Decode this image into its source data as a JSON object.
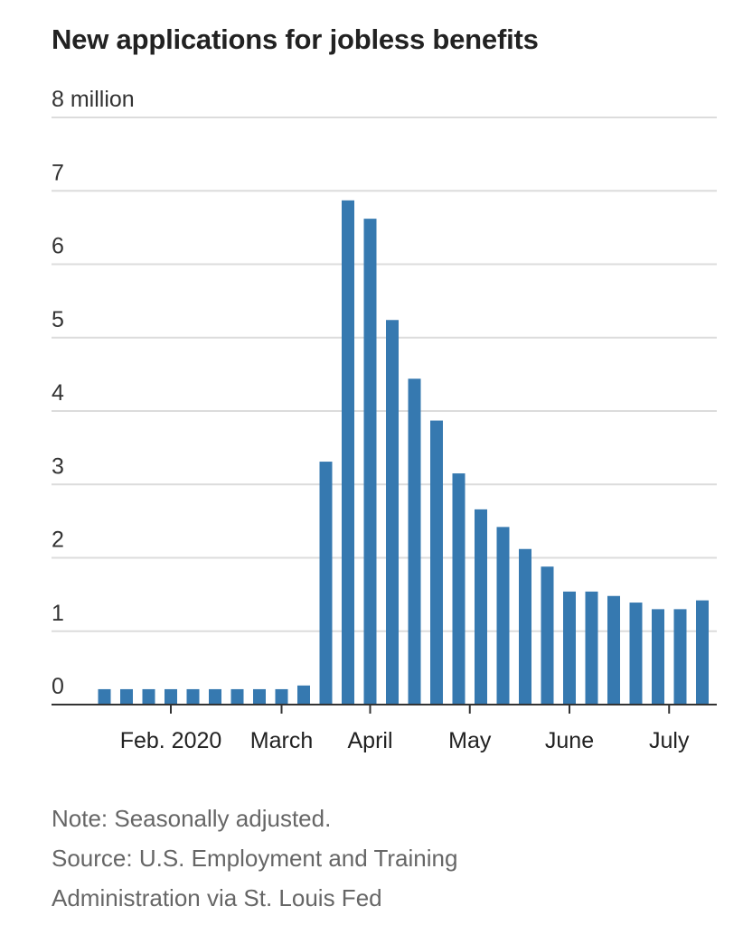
{
  "title": "New applications for jobless benefits",
  "note": "Note: Seasonally adjusted.",
  "source_line1": "Source: U.S. Employment and Training",
  "source_line2": "Administration via St. Louis Fed",
  "colors": {
    "bar": "#3679b0",
    "grid": "#dcdcdc",
    "axis": "#333333"
  },
  "chart_data": {
    "type": "bar",
    "title": "New applications for jobless benefits",
    "ylabel_unit": "million",
    "ylim": [
      0,
      8
    ],
    "yticks": [
      {
        "value": 0,
        "label": "0"
      },
      {
        "value": 1,
        "label": "1"
      },
      {
        "value": 2,
        "label": "2"
      },
      {
        "value": 3,
        "label": "3"
      },
      {
        "value": 4,
        "label": "4"
      },
      {
        "value": 5,
        "label": "5"
      },
      {
        "value": 6,
        "label": "6"
      },
      {
        "value": 7,
        "label": "7"
      },
      {
        "value": 8,
        "label": "8 million"
      }
    ],
    "xticks": [
      {
        "position": 3,
        "label": "Feb. 2020"
      },
      {
        "position": 8,
        "label": "March"
      },
      {
        "position": 12,
        "label": "April"
      },
      {
        "position": 16.5,
        "label": "May"
      },
      {
        "position": 21,
        "label": "June"
      },
      {
        "position": 25.5,
        "label": "July"
      }
    ],
    "values": [
      0.21,
      0.21,
      0.21,
      0.21,
      0.21,
      0.21,
      0.21,
      0.21,
      0.21,
      0.26,
      3.31,
      6.87,
      6.62,
      5.24,
      4.44,
      3.87,
      3.15,
      2.66,
      2.42,
      2.12,
      1.88,
      1.54,
      1.54,
      1.48,
      1.39,
      1.3,
      1.3,
      1.42
    ],
    "grid": true,
    "legend": "none"
  }
}
